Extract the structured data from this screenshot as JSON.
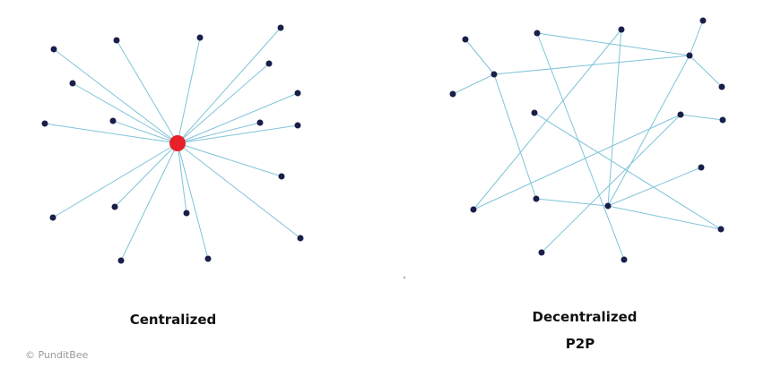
{
  "centralized": {
    "label": "Centralized"
  },
  "decentralized": {
    "label": "Decentralized",
    "sublabel": "P2P"
  },
  "watermark": "© PunditBee"
}
